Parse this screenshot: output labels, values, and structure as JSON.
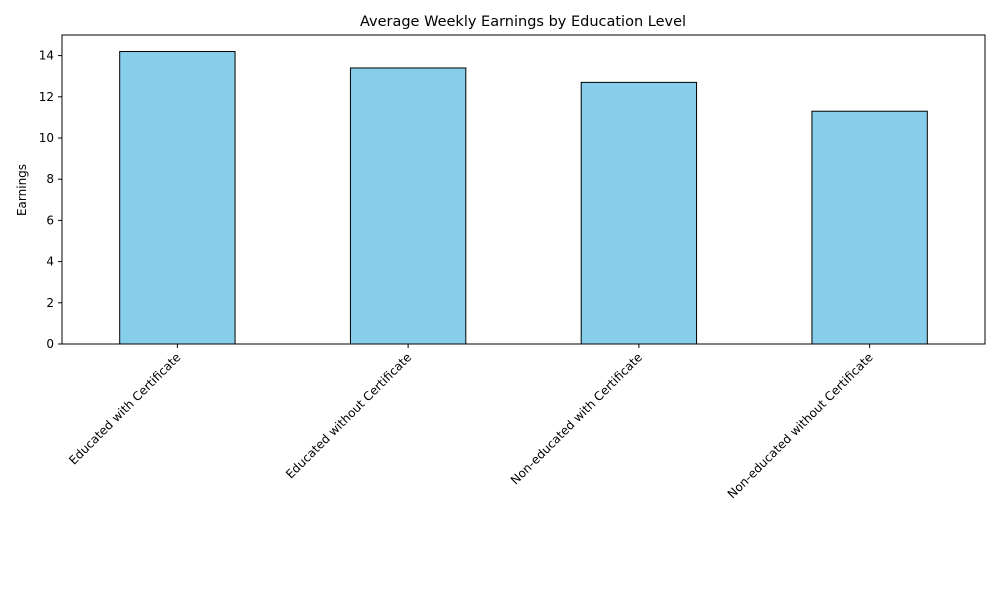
{
  "chart_data": {
    "type": "bar",
    "title": "Average Weekly Earnings by Education Level",
    "xlabel": "",
    "ylabel": "Earnings",
    "categories": [
      "Educated with Certificate",
      "Educated without Certificate",
      "Non-educated with Certificate",
      "Non-educated without Certificate"
    ],
    "values": [
      14.2,
      13.4,
      12.7,
      11.3
    ],
    "ylim": [
      0,
      15
    ],
    "yticks": [
      0,
      2,
      4,
      6,
      8,
      10,
      12,
      14
    ],
    "grid": false,
    "legend": "none",
    "colors": {
      "bar_fill": "#87CEEB",
      "bar_edge": "#000000",
      "axis": "#000000",
      "background": "#ffffff"
    }
  }
}
